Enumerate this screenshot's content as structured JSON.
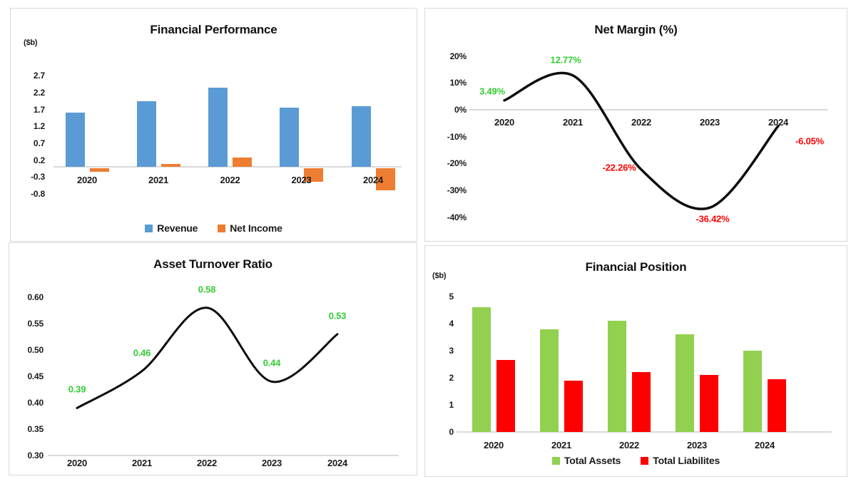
{
  "chart_data": [
    {
      "id": "financial-performance",
      "type": "bar",
      "title": "Financial Performance",
      "unit_label": "($b)",
      "categories": [
        "2020",
        "2021",
        "2022",
        "2023",
        "2024"
      ],
      "series": [
        {
          "name": "Revenue",
          "color": "#5B9BD5",
          "values": [
            1.6,
            1.95,
            2.35,
            1.75,
            1.8
          ]
        },
        {
          "name": "Net Income",
          "color": "#ED7D31",
          "values": [
            -0.1,
            0.08,
            0.28,
            -0.4,
            -0.65
          ]
        }
      ],
      "y_ticks": [
        "2.7",
        "2.2",
        "1.7",
        "1.2",
        "0.7",
        "0.2",
        "-0.3",
        "-0.8"
      ],
      "ylim": [
        -0.8,
        2.7
      ],
      "grid": false,
      "legend_position": "bottom"
    },
    {
      "id": "net-margin",
      "type": "line",
      "title": "Net Margin (%)",
      "categories": [
        "2020",
        "2021",
        "2022",
        "2023",
        "2024"
      ],
      "values": [
        3.49,
        12.77,
        -22.26,
        -36.42,
        -6.05
      ],
      "data_labels": [
        "3.49%",
        "12.77%",
        "-22.26%",
        "-36.42%",
        "-6.05%"
      ],
      "data_label_colors": [
        "#33CC33",
        "#33CC33",
        "#FF0000",
        "#FF0000",
        "#FF0000"
      ],
      "y_ticks": [
        "20%",
        "10%",
        "0%",
        "-10%",
        "-20%",
        "-30%",
        "-40%"
      ],
      "ylim": [
        -40,
        20
      ],
      "grid": false,
      "line_color": "#0d0d0d",
      "legend_position": "none"
    },
    {
      "id": "asset-turnover-ratio",
      "type": "line",
      "title": "Asset Turnover Ratio",
      "categories": [
        "2020",
        "2021",
        "2022",
        "2023",
        "2024"
      ],
      "values": [
        0.39,
        0.46,
        0.58,
        0.44,
        0.53
      ],
      "data_labels": [
        "0.39",
        "0.46",
        "0.58",
        "0.44",
        "0.53"
      ],
      "data_label_colors": [
        "#33CC33",
        "#33CC33",
        "#33CC33",
        "#33CC33",
        "#33CC33"
      ],
      "y_ticks": [
        "0.60",
        "0.55",
        "0.50",
        "0.45",
        "0.40",
        "0.35",
        "0.30"
      ],
      "ylim": [
        0.3,
        0.6
      ],
      "grid": false,
      "line_color": "#0d0d0d",
      "legend_position": "none"
    },
    {
      "id": "financial-position",
      "type": "bar",
      "title": "Financial Position",
      "unit_label": "($b)",
      "categories": [
        "2020",
        "2021",
        "2022",
        "2023",
        "2024"
      ],
      "series": [
        {
          "name": "Total Assets",
          "color": "#92D050",
          "values": [
            4.6,
            3.8,
            4.1,
            3.6,
            3.0
          ]
        },
        {
          "name": "Total Liabilites",
          "color": "#FF0000",
          "values": [
            2.65,
            1.9,
            2.2,
            2.1,
            1.95
          ]
        }
      ],
      "y_ticks": [
        "5",
        "4",
        "3",
        "2",
        "1",
        "0"
      ],
      "ylim": [
        0,
        5
      ],
      "grid": false,
      "legend_position": "bottom"
    }
  ],
  "colors": {
    "panel_border": "#d9d9d9",
    "axis_line": "#d9d9d9",
    "text": "#1a1a1a",
    "positive_label": "#33CC33",
    "negative_label": "#FF0000"
  }
}
